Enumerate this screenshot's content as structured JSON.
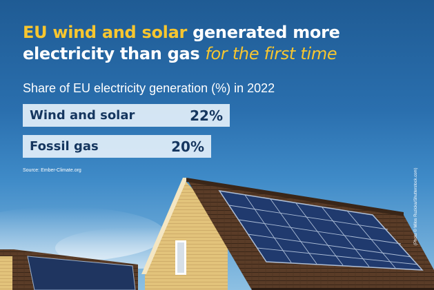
{
  "colors": {
    "title_white": "#ffffff",
    "title_highlight": "#f7c62f",
    "sky_top": "#1f5b94",
    "bar_fill": "#e1eef9",
    "bar_text": "#15365f"
  },
  "headline": {
    "part1": "EU wind and solar",
    "part2": " generated more",
    "part3": "electricity than gas ",
    "part4": "for the first time"
  },
  "chart_data": {
    "type": "bar",
    "orientation": "horizontal",
    "title": "Share of EU electricity generation (%) in 2022",
    "categories": [
      "Wind and solar",
      "Fossil gas"
    ],
    "values": [
      22,
      20
    ],
    "value_labels": [
      "22%",
      "20%"
    ],
    "unit": "%",
    "grid": false
  },
  "source": "Source: Ember-Climate.org",
  "photo_credit": "(Photo © Milos Ruzicka/Shutterstock.com)"
}
